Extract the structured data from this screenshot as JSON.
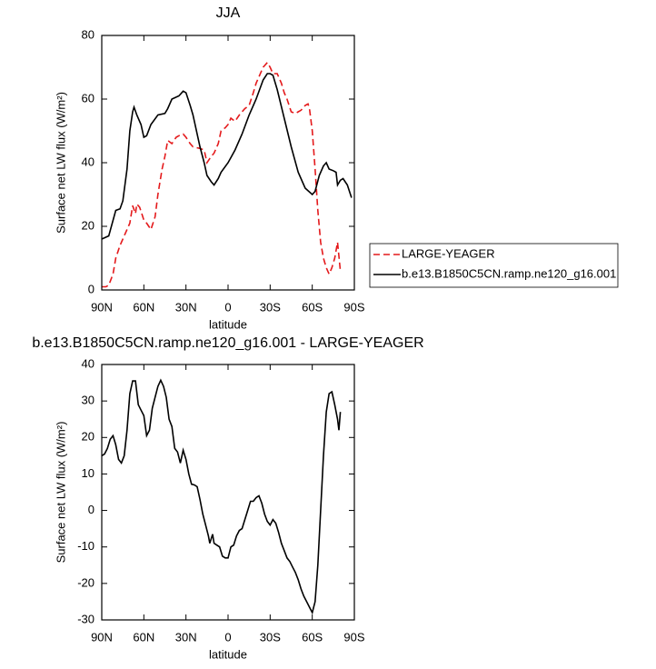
{
  "chart_data": [
    {
      "type": "line",
      "title": "JJA",
      "xlabel": "latitude",
      "ylabel": "Surface net LW flux (W/m²)",
      "xlim": [
        90,
        -90
      ],
      "ylim": [
        0,
        80
      ],
      "xticks": [
        {
          "value": 90,
          "label": "90N"
        },
        {
          "value": 60,
          "label": "60N"
        },
        {
          "value": 30,
          "label": "30N"
        },
        0,
        {
          "value": -30,
          "label": "30S"
        },
        {
          "value": -60,
          "label": "60S"
        },
        {
          "value": -90,
          "label": "90S"
        }
      ],
      "yticks": [
        0,
        20,
        40,
        60,
        80
      ],
      "legend": "lower-right-outside",
      "series": [
        {
          "name": "LARGE-YEAGER",
          "color": "#e41a1c",
          "line_style": "dashed",
          "x": [
            90,
            87,
            85,
            82,
            80,
            77,
            75,
            72,
            70,
            68,
            66,
            65,
            63,
            60,
            58,
            55,
            52,
            50,
            47,
            45,
            43,
            40,
            37,
            35,
            32,
            30,
            27,
            25,
            20,
            17,
            15,
            12,
            10,
            7,
            5,
            2,
            0,
            -2,
            -5,
            -8,
            -10,
            -12,
            -15,
            -18,
            -20,
            -22,
            -25,
            -28,
            -30,
            -32,
            -35,
            -38,
            -40,
            -42,
            -45,
            -48,
            -50,
            -52,
            -55,
            -57,
            -58,
            -60,
            -62,
            -64,
            -66,
            -68,
            -70,
            -72,
            -74,
            -76,
            -78,
            -80
          ],
          "values": [
            1,
            1,
            1.5,
            5,
            10,
            14,
            16,
            19,
            21,
            26.5,
            24,
            27,
            26,
            22,
            21,
            19,
            23,
            30,
            38,
            42,
            47,
            46,
            48,
            48.5,
            49,
            48,
            46,
            45,
            44.5,
            44,
            40,
            42,
            43,
            46,
            50,
            51,
            52,
            54,
            53,
            55,
            56,
            57,
            58,
            62,
            65,
            67,
            70,
            71.5,
            70,
            68,
            68,
            65,
            62,
            60,
            56,
            55.5,
            56,
            56.5,
            58,
            58.5,
            57,
            50,
            38,
            25,
            15,
            10,
            7,
            5,
            7,
            10,
            15,
            6
          ]
        },
        {
          "name": "b.e13.B1850C5CN.ramp.ne120_g16.001",
          "color": "#000000",
          "line_style": "solid",
          "x": [
            90,
            85,
            80,
            77,
            75,
            72,
            70,
            68,
            67,
            65,
            62,
            60,
            58,
            55,
            50,
            45,
            43,
            40,
            35,
            32,
            30,
            27,
            25,
            20,
            17,
            15,
            12,
            10,
            7,
            5,
            0,
            -5,
            -10,
            -15,
            -20,
            -25,
            -28,
            -30,
            -32,
            -35,
            -40,
            -45,
            -50,
            -55,
            -60,
            -62,
            -65,
            -68,
            -70,
            -72,
            -75,
            -77,
            -78,
            -80,
            -82,
            -85,
            -88
          ],
          "values": [
            16,
            17,
            25,
            25.5,
            28,
            38,
            50,
            56,
            57.5,
            55,
            52,
            48,
            48.5,
            52,
            55,
            55.5,
            57,
            60,
            61,
            62.5,
            62,
            58,
            55,
            45,
            40,
            36,
            34,
            33,
            35,
            37,
            40,
            44,
            49,
            55,
            60,
            66,
            68,
            68,
            67.5,
            63,
            54,
            45,
            37,
            32,
            30,
            31,
            36,
            39,
            40,
            38,
            37.5,
            37,
            33,
            34.5,
            35,
            33,
            29
          ]
        }
      ]
    },
    {
      "type": "line",
      "title": "b.e13.B1850C5CN.ramp.ne120_g16.001 - LARGE-YEAGER",
      "xlabel": "latitude",
      "ylabel": "Surface net LW flux (W/m²)",
      "xlim": [
        90,
        -90
      ],
      "ylim": [
        -30,
        40
      ],
      "xticks": [
        {
          "value": 90,
          "label": "90N"
        },
        {
          "value": 60,
          "label": "60N"
        },
        {
          "value": 30,
          "label": "30N"
        },
        0,
        {
          "value": -30,
          "label": "30S"
        },
        {
          "value": -60,
          "label": "60S"
        },
        {
          "value": -90,
          "label": "90S"
        }
      ],
      "yticks": [
        -30,
        -20,
        -10,
        0,
        10,
        20,
        30,
        40
      ],
      "series": [
        {
          "color": "#000000",
          "line_style": "solid",
          "x": [
            90,
            88,
            86,
            84,
            82,
            80,
            78,
            76,
            74,
            72,
            70,
            68,
            66,
            64,
            62,
            60,
            58,
            56,
            54,
            52,
            50,
            48,
            46,
            44,
            42,
            40,
            38,
            36,
            34,
            32,
            30,
            28,
            26,
            24,
            22,
            20,
            18,
            16,
            14,
            13,
            11,
            10,
            8,
            6,
            4,
            2,
            0,
            -2,
            -4,
            -6,
            -8,
            -10,
            -12,
            -14,
            -16,
            -18,
            -20,
            -22,
            -24,
            -26,
            -28,
            -30,
            -32,
            -34,
            -36,
            -38,
            -40,
            -42,
            -44,
            -46,
            -48,
            -50,
            -52,
            -54,
            -56,
            -58,
            -60,
            -62,
            -64,
            -66,
            -68,
            -70,
            -72,
            -74,
            -76,
            -78,
            -79,
            -80
          ],
          "values": [
            15,
            15.5,
            17,
            19.5,
            20.5,
            18,
            14,
            13,
            15,
            22,
            32,
            35.5,
            35.5,
            29,
            27.5,
            26,
            20.5,
            22,
            28,
            31,
            34,
            35.7,
            34,
            31,
            25,
            23,
            17,
            16,
            13,
            16.5,
            14,
            10,
            7.2,
            7,
            6.5,
            3,
            -1,
            -4,
            -7,
            -9,
            -6.5,
            -9,
            -9.5,
            -10,
            -12.5,
            -13,
            -13,
            -10,
            -9.5,
            -7,
            -5.5,
            -5,
            -2.5,
            0,
            2.5,
            2.5,
            3.5,
            4,
            2,
            -1,
            -3,
            -4,
            -2.5,
            -3.5,
            -6,
            -9,
            -11,
            -13,
            -14,
            -15.5,
            -17,
            -19,
            -21.5,
            -23.5,
            -25,
            -26.5,
            -28,
            -25,
            -15,
            0,
            15,
            27,
            32,
            32.5,
            29,
            25,
            22,
            27
          ]
        }
      ]
    }
  ]
}
